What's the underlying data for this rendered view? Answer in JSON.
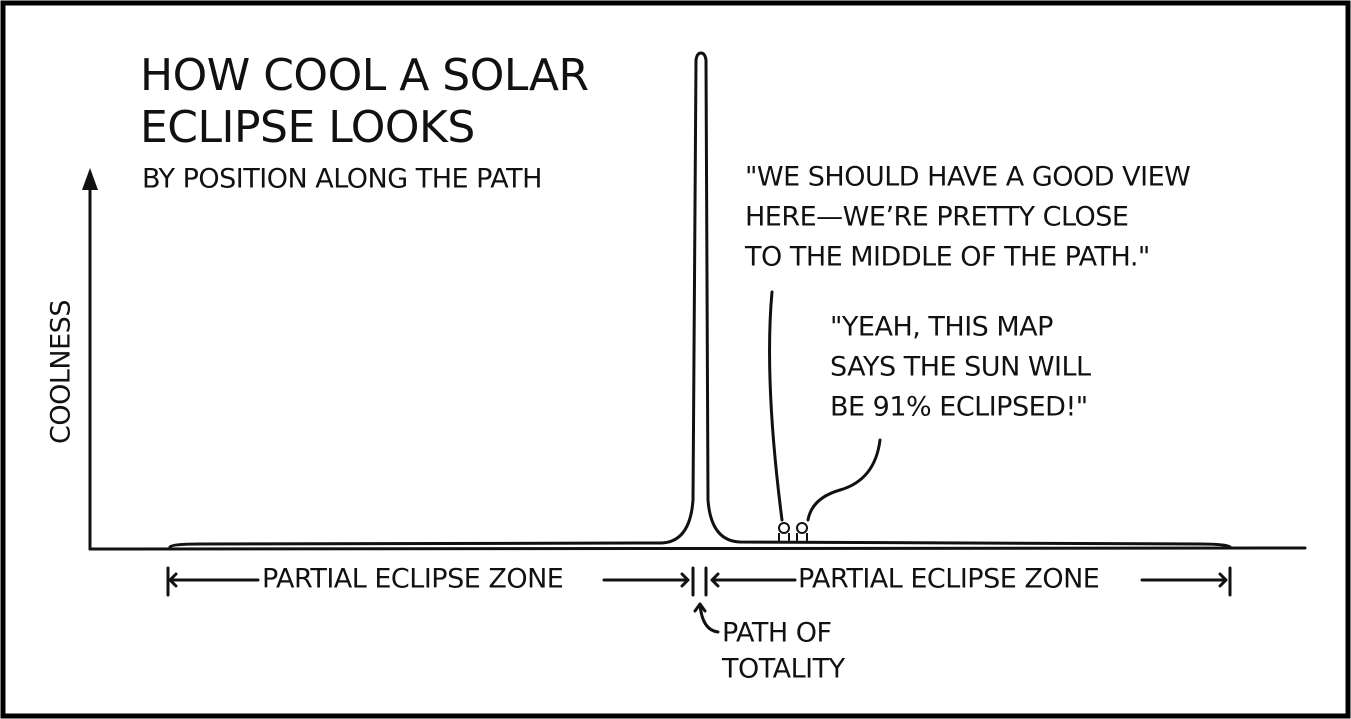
{
  "comic": {
    "title_lines": [
      "HOW COOL A SOLAR",
      "ECLIPSE LOOKS"
    ],
    "subtitle": "BY POSITION ALONG THE PATH",
    "y_label": "COOLNESS",
    "quote_1_lines": [
      "\"WE SHOULD HAVE A GOOD VIEW",
      "HERE—WE’RE PRETTY CLOSE",
      "TO THE MIDDLE OF THE PATH.\""
    ],
    "quote_2_lines": [
      "\"YEAH, THIS MAP",
      "SAYS THE SUN WILL",
      "BE 91% ECLIPSED!\""
    ],
    "zone_left": "PARTIAL ECLIPSE ZONE",
    "zone_right": "PARTIAL ECLIPSE ZONE",
    "totality_lines": [
      "PATH OF",
      "TOTALITY"
    ]
  }
}
